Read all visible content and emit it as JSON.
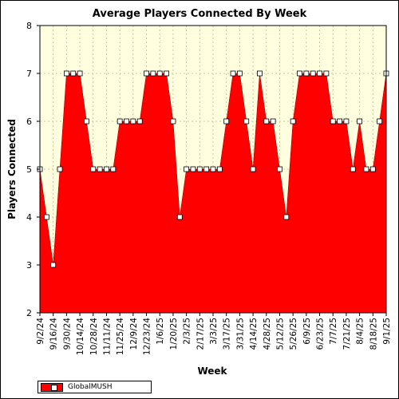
{
  "chart_data": {
    "type": "area",
    "title": "Average Players Connected By Week",
    "xlabel": "Week",
    "ylabel": "Players Connected",
    "ylim": [
      2,
      8
    ],
    "yticks": [
      2,
      3,
      4,
      5,
      6,
      7,
      8
    ],
    "grid": true,
    "legend_placement": "bottom-left",
    "colors": {
      "fill": "#ff0000",
      "plot_background": "#ffffe0",
      "grid": "#c8c8a0",
      "marker_fill": "#ffffff"
    },
    "x": [
      "9/2/24",
      "9/9/24",
      "9/16/24",
      "9/23/24",
      "9/30/24",
      "10/7/24",
      "10/14/24",
      "10/21/24",
      "10/28/24",
      "11/4/24",
      "11/11/24",
      "11/18/24",
      "11/25/24",
      "12/2/24",
      "12/9/24",
      "12/16/24",
      "12/23/24",
      "12/30/24",
      "1/6/25",
      "1/13/25",
      "1/20/25",
      "1/27/25",
      "2/3/25",
      "2/10/25",
      "2/17/25",
      "2/24/25",
      "3/3/25",
      "3/10/25",
      "3/17/25",
      "3/24/25",
      "3/31/25",
      "4/7/25",
      "4/14/25",
      "4/21/25",
      "4/28/25",
      "5/5/25",
      "5/12/25",
      "5/19/25",
      "5/26/25",
      "6/2/25",
      "6/9/25",
      "6/16/25",
      "6/23/25",
      "6/30/25",
      "7/7/25",
      "7/14/25",
      "7/21/25",
      "7/28/25",
      "8/4/25",
      "8/11/25",
      "8/18/25",
      "8/25/25",
      "9/1/25"
    ],
    "xtick_labels": [
      "9/2/24",
      "9/16/24",
      "9/30/24",
      "10/14/24",
      "10/28/24",
      "11/11/24",
      "11/25/24",
      "12/9/24",
      "12/23/24",
      "1/6/25",
      "1/20/25",
      "2/3/25",
      "2/17/25",
      "3/3/25",
      "3/17/25",
      "3/31/25",
      "4/14/25",
      "4/28/25",
      "5/12/25",
      "5/26/25",
      "6/9/25",
      "6/23/25",
      "7/7/25",
      "7/21/25",
      "8/4/25",
      "8/18/25",
      "9/1/25"
    ],
    "series": [
      {
        "name": "GlobalMUSH",
        "values": [
          5,
          4,
          3,
          5,
          7,
          7,
          7,
          6,
          5,
          5,
          5,
          5,
          6,
          6,
          6,
          6,
          7,
          7,
          7,
          7,
          6,
          4,
          5,
          5,
          5,
          5,
          5,
          5,
          6,
          7,
          7,
          6,
          5,
          7,
          6,
          6,
          5,
          4,
          6,
          7,
          7,
          7,
          7,
          7,
          6,
          6,
          6,
          5,
          6,
          5,
          5,
          6,
          7
        ]
      }
    ]
  }
}
